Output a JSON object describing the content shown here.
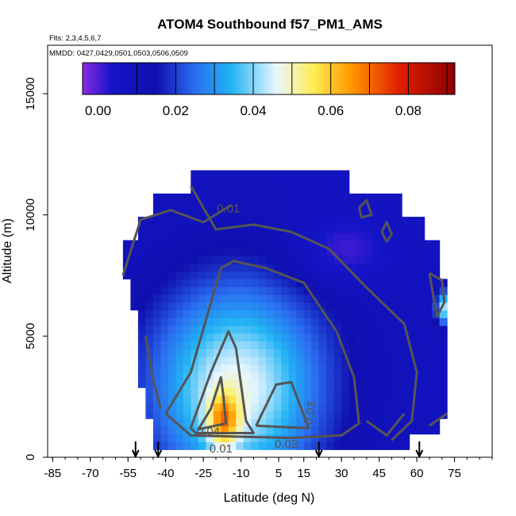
{
  "chart_data": {
    "type": "heatmap",
    "title": "ATOM4 Southbound f57_PM1_AMS",
    "flights_note": "Flts: 2,3,4,5,6,7",
    "dates_note": "MMDD: 0427,0429,0501,0503,0506,0509",
    "xlabel": "Latitude (deg N)",
    "ylabel": "Altitude (m)",
    "xlim": [
      -87,
      90
    ],
    "ylim": [
      0,
      17000
    ],
    "x_ticks": [
      "-85",
      "-70",
      "-55",
      "-40",
      "-25",
      "-10",
      "5",
      "15",
      "30",
      "45",
      "60",
      "75"
    ],
    "y_ticks": [
      "0",
      "5000",
      "10000",
      "15000"
    ],
    "colorbar": {
      "range": [
        -0.004,
        0.092
      ],
      "ticks": [
        "0.00",
        "0.02",
        "0.04",
        "0.06",
        "0.08"
      ],
      "colors": [
        "#8a2be2",
        "#1414c8",
        "#2a6cf0",
        "#22b4f5",
        "#e8f6ff",
        "#ffee55",
        "#ff9a00",
        "#e02000",
        "#8b0000"
      ]
    },
    "contour_labels": [
      {
        "text": "0.01",
        "lat": -15,
        "alt": 10100
      },
      {
        "text": "0.04",
        "lat": -23,
        "alt": 900
      },
      {
        "text": "0.01",
        "lat": -18,
        "alt": 200
      },
      {
        "text": "0.03",
        "lat": 19,
        "alt": 1800
      },
      {
        "text": "0.02",
        "lat": 8,
        "alt": 400
      }
    ],
    "flight_arrows_lat": [
      -52,
      -43,
      21,
      61
    ],
    "contour_color": "#555555"
  }
}
